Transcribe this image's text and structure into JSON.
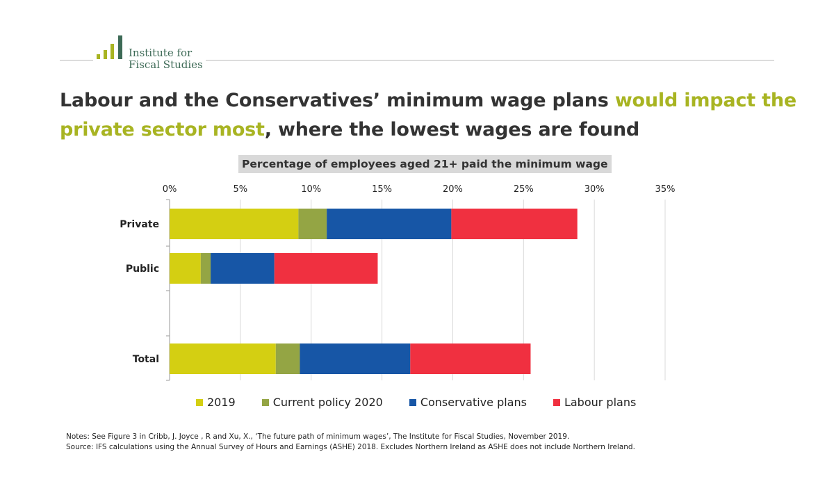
{
  "branding": {
    "logo_line1": "Institute for",
    "logo_line2": "Fiscal Studies",
    "logo_color": "#3d6a56",
    "logo_bar_colors": [
      "#a8b422",
      "#a8b422",
      "#a8b422",
      "#3d6a56"
    ]
  },
  "headline": {
    "part1": "Labour and the Conservatives’ minimum wage plans ",
    "highlight": "would impact the private sector most",
    "part2": ", where the lowest wages are found",
    "highlight_color": "#a8b422"
  },
  "chart_data": {
    "type": "bar",
    "orientation": "horizontal",
    "stacked": true,
    "title": "Percentage of employees aged 21+ paid the minimum wage",
    "categories": [
      "Private",
      "Public",
      "Total"
    ],
    "series": [
      {
        "name": "2019",
        "color": "#d4cf12",
        "values": [
          9.1,
          2.2,
          7.5
        ]
      },
      {
        "name": "Current policy 2020",
        "color": "#94a544",
        "values": [
          2.0,
          0.7,
          1.7
        ]
      },
      {
        "name": "Conservative plans",
        "color": "#1756a6",
        "values": [
          8.8,
          4.5,
          7.8
        ]
      },
      {
        "name": "Labour plans",
        "color": "#f03040",
        "values": [
          8.9,
          7.3,
          8.5
        ]
      }
    ],
    "xlim": [
      0,
      35
    ],
    "xticks": [
      0,
      5,
      10,
      15,
      20,
      25,
      30,
      35
    ],
    "xtick_labels": [
      "0%",
      "5%",
      "10%",
      "15%",
      "20%",
      "25%",
      "30%",
      "35%"
    ],
    "grid": true,
    "legend_position": "bottom"
  },
  "notes": {
    "line1": "Notes: See Figure 3 in  Cribb, J. Joyce , R and Xu, X., ‘The future path of minimum wages’, The Institute for Fiscal Studies, November 2019.",
    "line2": "Source: IFS calculations using the Annual Survey of Hours and Earnings (ASHE) 2018. Excludes Northern Ireland as ASHE does not include Northern Ireland."
  }
}
